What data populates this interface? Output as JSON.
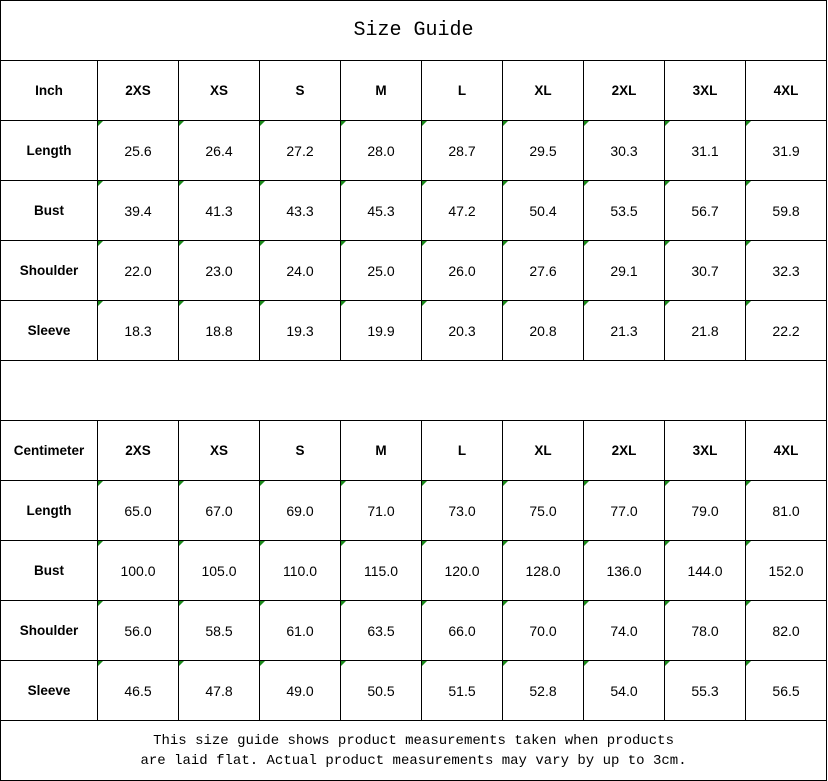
{
  "title": "Size Guide",
  "sizes": [
    "2XS",
    "XS",
    "S",
    "M",
    "L",
    "XL",
    "2XL",
    "3XL",
    "4XL"
  ],
  "tables": [
    {
      "unit": "Inch",
      "rows": [
        {
          "label": "Length",
          "values": [
            "25.6",
            "26.4",
            "27.2",
            "28.0",
            "28.7",
            "29.5",
            "30.3",
            "31.1",
            "31.9"
          ]
        },
        {
          "label": "Bust",
          "values": [
            "39.4",
            "41.3",
            "43.3",
            "45.3",
            "47.2",
            "50.4",
            "53.5",
            "56.7",
            "59.8"
          ]
        },
        {
          "label": "Shoulder",
          "values": [
            "22.0",
            "23.0",
            "24.0",
            "25.0",
            "26.0",
            "27.6",
            "29.1",
            "30.7",
            "32.3"
          ]
        },
        {
          "label": "Sleeve",
          "values": [
            "18.3",
            "18.8",
            "19.3",
            "19.9",
            "20.3",
            "20.8",
            "21.3",
            "21.8",
            "22.2"
          ]
        }
      ]
    },
    {
      "unit": "Centimeter",
      "rows": [
        {
          "label": "Length",
          "values": [
            "65.0",
            "67.0",
            "69.0",
            "71.0",
            "73.0",
            "75.0",
            "77.0",
            "79.0",
            "81.0"
          ]
        },
        {
          "label": "Bust",
          "values": [
            "100.0",
            "105.0",
            "110.0",
            "115.0",
            "120.0",
            "128.0",
            "136.0",
            "144.0",
            "152.0"
          ]
        },
        {
          "label": "Shoulder",
          "values": [
            "56.0",
            "58.5",
            "61.0",
            "63.5",
            "66.0",
            "70.0",
            "74.0",
            "78.0",
            "82.0"
          ]
        },
        {
          "label": "Sleeve",
          "values": [
            "46.5",
            "47.8",
            "49.0",
            "50.5",
            "51.5",
            "52.8",
            "54.0",
            "55.3",
            "56.5"
          ]
        }
      ]
    }
  ],
  "note_lines": [
    "This size guide shows product measurements taken when products",
    "are laid flat. Actual product measurements may vary by up to 3cm."
  ],
  "colors": {
    "marker": "#1a8a1a",
    "border": "#000000"
  }
}
